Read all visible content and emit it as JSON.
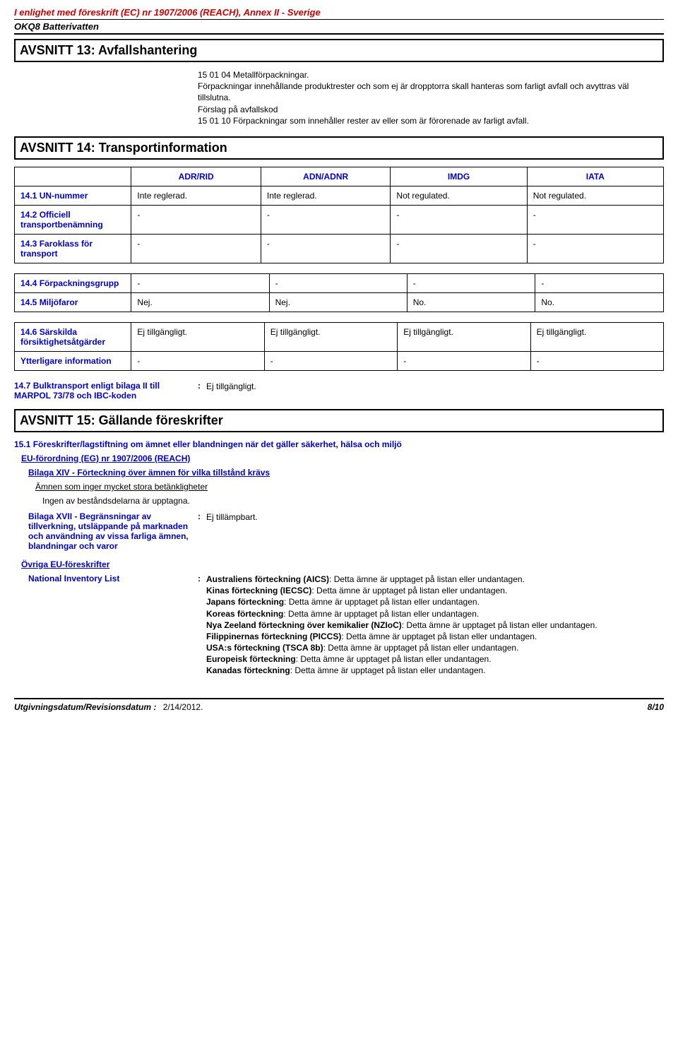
{
  "header": {
    "regulation": "I enlighet med föreskrift (EC) nr 1907/2006 (REACH), Annex II - Sverige",
    "product": "OKQ8 Batterivatten"
  },
  "section13": {
    "title": "AVSNITT 13: Avfallshantering",
    "body": "15 01 04 Metallförpackningar.\nFörpackningar innehållande produktrester och som ej är dropptorra skall hanteras som farligt avfall och avyttras väl tillslutna.\nFörslag på avfallskod\n15 01 10 Förpackningar som innehåller rester av eller som är förorenade av farligt avfall."
  },
  "section14": {
    "title": "AVSNITT 14: Transportinformation",
    "headers": [
      "ADR/RID",
      "ADN/ADNR",
      "IMDG",
      "IATA"
    ],
    "table1": [
      {
        "label": "14.1 UN-nummer",
        "cells": [
          "Inte reglerad.",
          "Inte reglerad.",
          "Not regulated.",
          "Not regulated."
        ]
      },
      {
        "label": "14.2 Officiell transportbenämning",
        "cells": [
          "-",
          "-",
          "-",
          "-"
        ]
      },
      {
        "label": "14.3 Faroklass för transport",
        "cells": [
          "-",
          "-",
          "-",
          "-"
        ]
      }
    ],
    "table2": [
      {
        "label": "14.4 Förpackningsgrupp",
        "cells": [
          "-",
          "-",
          "-",
          "-"
        ]
      },
      {
        "label": "14.5 Miljöfaror",
        "cells": [
          "Nej.",
          "Nej.",
          "No.",
          "No."
        ]
      }
    ],
    "table3": [
      {
        "label": "14.6 Särskilda försiktighetsåtgärder",
        "cells": [
          "Ej tillgängligt.",
          "Ej tillgängligt.",
          "Ej tillgängligt.",
          "Ej tillgängligt."
        ]
      },
      {
        "label": "Ytterligare information",
        "cells": [
          "-",
          "-",
          "-",
          "-"
        ]
      }
    ],
    "bulk": {
      "label": "14.7 Bulktransport enligt bilaga II till MARPOL 73/78 och IBC-koden",
      "value": "Ej tillgängligt."
    }
  },
  "section15": {
    "title": "AVSNITT 15: Gällande föreskrifter",
    "sub1": "15.1 Föreskrifter/lagstiftning om ämnet eller blandningen när det gäller säkerhet, hälsa och miljö",
    "eu_reg": "EU-förordning (EG) nr 1907/2006 (REACH)",
    "annex14": "Bilaga XIV - Förteckning över ämnen för vilka tillstånd krävs",
    "concern": "Ämnen som inger mycket stora betänkligheter",
    "none_listed": "Ingen av beståndsdelarna är upptagna.",
    "annex17": {
      "label": "Bilaga XVII - Begränsningar av tillverkning, utsläppande på marknaden och användning av vissa farliga ämnen, blandningar och varor",
      "value": "Ej tillämpbart."
    },
    "other_eu": "Övriga EU-föreskrifter",
    "national": {
      "label": "National Inventory List",
      "lines": [
        {
          "b": "Australiens förteckning (AICS)",
          "t": ": Detta ämne är upptaget på listan eller undantagen."
        },
        {
          "b": "Kinas förteckning (IECSC)",
          "t": ": Detta ämne är upptaget på listan eller undantagen."
        },
        {
          "b": "Japans förteckning",
          "t": ": Detta ämne är upptaget på listan eller undantagen."
        },
        {
          "b": "Koreas förteckning",
          "t": ": Detta ämne är upptaget på listan eller undantagen."
        },
        {
          "b": "Nya Zeeland förteckning över kemikalier (NZIoC)",
          "t": ": Detta ämne är upptaget på listan eller undantagen."
        },
        {
          "b": "Filippinernas förteckning (PICCS)",
          "t": ": Detta ämne är upptaget på listan eller undantagen."
        },
        {
          "b": "USA:s förteckning (TSCA 8b)",
          "t": ": Detta ämne är upptaget på listan eller undantagen."
        },
        {
          "b": "Europeisk förteckning",
          "t": ": Detta ämne är upptaget på listan eller undantagen."
        },
        {
          "b": "Kanadas förteckning",
          "t": ": Detta ämne är upptaget på listan eller undantagen."
        }
      ]
    }
  },
  "footer": {
    "label": "Utgivningsdatum/Revisionsdatum",
    "date": "2/14/2012.",
    "page": "8/10"
  }
}
